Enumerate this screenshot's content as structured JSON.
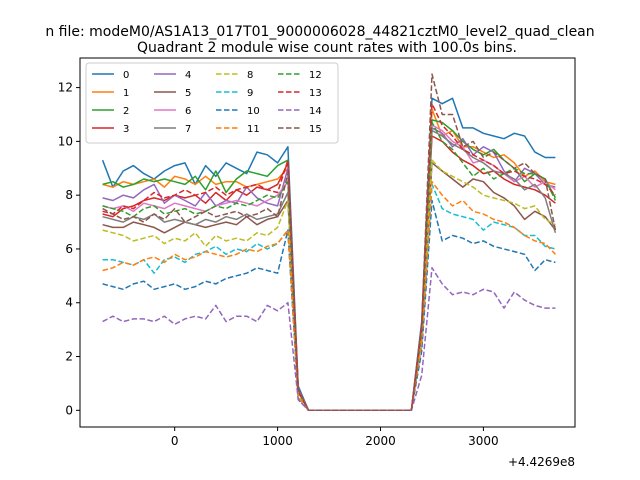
{
  "chart_data": {
    "type": "line",
    "suptitle": "n file: modeM0/AS1A13_017T01_9000006028_44821cztM0_level2_quad_clean",
    "title": "Quadrant 2 module wise count rates with 100.0s bins.",
    "xlabel": "",
    "ylabel": "",
    "x_offset_label": "+4.4269e8",
    "xlim": [
      -920,
      3890
    ],
    "ylim": [
      -0.62,
      13.1
    ],
    "x_ticks": [
      0,
      1000,
      2000,
      3000
    ],
    "x_tick_labels": [
      "0",
      "1000",
      "2000",
      "3000"
    ],
    "y_ticks": [
      0,
      2,
      4,
      6,
      8,
      10,
      12
    ],
    "y_tick_labels": [
      "0",
      "2",
      "4",
      "6",
      "8",
      "10",
      "12"
    ],
    "grid": false,
    "legend_placement": "top-left",
    "x": [
      -700,
      -600,
      -500,
      -400,
      -300,
      -200,
      -100,
      0,
      100,
      200,
      300,
      400,
      500,
      600,
      700,
      800,
      900,
      1000,
      1100,
      1200,
      1300,
      1400,
      1500,
      1600,
      1700,
      1800,
      1900,
      2000,
      2100,
      2200,
      2300,
      2400,
      2500,
      2600,
      2700,
      2800,
      2900,
      3000,
      3100,
      3200,
      3300,
      3400,
      3500,
      3600,
      3700
    ],
    "series": [
      {
        "name": "0",
        "color": "#1f77b4",
        "dash": "solid",
        "values": [
          9.3,
          8.3,
          8.9,
          9.1,
          8.8,
          8.6,
          8.9,
          9.1,
          9.2,
          8.4,
          9.1,
          8.7,
          9.2,
          9.0,
          8.8,
          9.6,
          9.5,
          9.2,
          9.8,
          0.9,
          0.0,
          0.0,
          0.0,
          0.0,
          0.0,
          0.0,
          0.0,
          0.0,
          0.0,
          0.0,
          0.0,
          3.3,
          11.6,
          11.4,
          11.6,
          10.5,
          10.5,
          10.3,
          10.2,
          10.1,
          10.3,
          10.2,
          9.6,
          9.4,
          9.4
        ]
      },
      {
        "name": "1",
        "color": "#ff7f0e",
        "dash": "solid",
        "values": [
          8.4,
          8.3,
          8.5,
          8.4,
          8.5,
          8.6,
          8.3,
          8.7,
          8.6,
          8.4,
          8.7,
          8.4,
          8.5,
          8.5,
          8.3,
          8.4,
          8.5,
          8.6,
          9.0,
          0.8,
          0.0,
          0.0,
          0.0,
          0.0,
          0.0,
          0.0,
          0.0,
          0.0,
          0.0,
          0.0,
          0.0,
          3.0,
          11.2,
          10.2,
          10.4,
          9.8,
          9.8,
          9.6,
          9.4,
          9.5,
          9.2,
          8.7,
          8.9,
          8.5,
          8.4
        ]
      },
      {
        "name": "2",
        "color": "#2ca02c",
        "dash": "solid",
        "values": [
          8.4,
          8.5,
          8.3,
          8.4,
          8.6,
          8.5,
          8.6,
          8.5,
          8.4,
          8.7,
          8.2,
          8.9,
          8.1,
          8.6,
          8.9,
          8.8,
          8.7,
          9.1,
          9.3,
          0.8,
          0.0,
          0.0,
          0.0,
          0.0,
          0.0,
          0.0,
          0.0,
          0.0,
          0.0,
          0.0,
          0.0,
          3.1,
          10.8,
          10.7,
          10.4,
          10.0,
          9.7,
          9.5,
          9.7,
          9.3,
          9.0,
          8.5,
          8.8,
          8.6,
          7.9
        ]
      },
      {
        "name": "3",
        "color": "#d62728",
        "dash": "solid",
        "values": [
          7.3,
          7.2,
          7.5,
          7.6,
          7.8,
          7.9,
          7.8,
          8.0,
          7.9,
          8.0,
          7.7,
          8.1,
          7.8,
          8.2,
          8.0,
          8.3,
          8.2,
          8.4,
          9.2,
          0.8,
          0.0,
          0.0,
          0.0,
          0.0,
          0.0,
          0.0,
          0.0,
          0.0,
          0.0,
          0.0,
          0.0,
          2.9,
          10.2,
          10.0,
          9.6,
          9.3,
          9.1,
          8.8,
          8.9,
          8.6,
          8.4,
          8.3,
          8.2,
          8.0,
          7.7
        ]
      },
      {
        "name": "4",
        "color": "#9467bd",
        "dash": "solid",
        "values": [
          7.9,
          7.8,
          8.0,
          7.9,
          8.2,
          8.4,
          7.7,
          8.0,
          7.8,
          7.6,
          8.1,
          7.6,
          7.8,
          7.7,
          8.3,
          7.9,
          7.7,
          7.6,
          9.0,
          0.8,
          0.0,
          0.0,
          0.0,
          0.0,
          0.0,
          0.0,
          0.0,
          0.0,
          0.0,
          0.0,
          0.0,
          3.2,
          10.5,
          10.3,
          9.8,
          10.1,
          9.5,
          9.8,
          9.6,
          8.9,
          8.5,
          9.0,
          8.8,
          8.4,
          8.3
        ]
      },
      {
        "name": "5",
        "color": "#8c564b",
        "dash": "solid",
        "values": [
          6.9,
          6.8,
          6.8,
          7.0,
          6.9,
          6.8,
          6.6,
          6.8,
          7.0,
          6.9,
          6.8,
          6.9,
          7.0,
          6.9,
          7.2,
          6.9,
          7.1,
          7.2,
          7.8,
          0.7,
          0.0,
          0.0,
          0.0,
          0.0,
          0.0,
          0.0,
          0.0,
          0.0,
          0.0,
          0.0,
          0.0,
          2.8,
          9.2,
          8.9,
          8.6,
          8.3,
          8.6,
          8.5,
          8.1,
          7.9,
          7.6,
          7.1,
          7.4,
          7.2,
          6.7
        ]
      },
      {
        "name": "6",
        "color": "#e377c2",
        "dash": "solid",
        "values": [
          7.6,
          7.5,
          7.6,
          7.4,
          7.7,
          7.6,
          7.5,
          7.7,
          7.6,
          7.5,
          7.4,
          7.6,
          7.7,
          7.8,
          7.7,
          7.6,
          7.8,
          8.0,
          8.5,
          0.7,
          0.0,
          0.0,
          0.0,
          0.0,
          0.0,
          0.0,
          0.0,
          0.0,
          0.0,
          0.0,
          0.0,
          3.0,
          10.6,
          10.4,
          10.0,
          9.8,
          9.2,
          9.3,
          9.1,
          8.8,
          8.5,
          8.7,
          8.3,
          8.5,
          8.2
        ]
      },
      {
        "name": "7",
        "color": "#7f7f7f",
        "dash": "solid",
        "values": [
          7.2,
          7.1,
          7.0,
          7.2,
          7.1,
          7.3,
          7.0,
          7.1,
          7.0,
          6.9,
          7.1,
          7.0,
          7.2,
          7.1,
          7.3,
          7.1,
          7.2,
          7.3,
          8.1,
          0.7,
          0.0,
          0.0,
          0.0,
          0.0,
          0.0,
          0.0,
          0.0,
          0.0,
          0.0,
          0.0,
          0.0,
          2.9,
          10.4,
          10.2,
          9.9,
          9.7,
          9.4,
          9.2,
          8.9,
          8.8,
          8.6,
          8.2,
          8.4,
          7.9,
          6.6
        ]
      },
      {
        "name": "8",
        "color": "#bcbd22",
        "dash": "dashed",
        "values": [
          6.7,
          6.6,
          6.5,
          6.3,
          6.4,
          6.5,
          6.2,
          6.4,
          6.3,
          6.6,
          6.1,
          6.5,
          6.3,
          6.4,
          6.3,
          6.6,
          6.5,
          6.8,
          7.8,
          0.6,
          0.0,
          0.0,
          0.0,
          0.0,
          0.0,
          0.0,
          0.0,
          0.0,
          0.0,
          0.0,
          0.0,
          2.8,
          9.3,
          8.9,
          8.7,
          8.5,
          8.3,
          8.0,
          7.9,
          7.8,
          7.7,
          7.5,
          7.6,
          7.1,
          6.9
        ]
      },
      {
        "name": "9",
        "color": "#17becf",
        "dash": "dashed",
        "values": [
          5.6,
          5.6,
          5.5,
          5.4,
          5.6,
          5.1,
          5.6,
          5.7,
          5.5,
          5.8,
          5.9,
          6.1,
          5.8,
          6.0,
          5.9,
          6.2,
          6.0,
          6.2,
          6.7,
          0.5,
          0.0,
          0.0,
          0.0,
          0.0,
          0.0,
          0.0,
          0.0,
          0.0,
          0.0,
          0.0,
          0.0,
          2.4,
          8.4,
          7.5,
          7.3,
          7.2,
          7.1,
          6.7,
          7.0,
          6.9,
          6.8,
          6.5,
          6.5,
          6.1,
          6.0
        ]
      },
      {
        "name": "10",
        "color": "#1f77b4",
        "dash": "dashed",
        "values": [
          4.7,
          4.6,
          4.5,
          4.7,
          4.8,
          4.5,
          4.6,
          4.7,
          4.5,
          4.6,
          4.8,
          4.7,
          4.9,
          5.0,
          5.1,
          5.3,
          5.2,
          5.1,
          6.7,
          0.4,
          0.0,
          0.0,
          0.0,
          0.0,
          0.0,
          0.0,
          0.0,
          0.0,
          0.0,
          0.0,
          0.0,
          2.2,
          7.8,
          6.3,
          6.5,
          6.4,
          6.2,
          6.3,
          6.1,
          6.0,
          5.9,
          5.8,
          5.2,
          5.6,
          5.5
        ]
      },
      {
        "name": "11",
        "color": "#ff7f0e",
        "dash": "dashed",
        "values": [
          5.2,
          5.3,
          5.5,
          5.4,
          5.6,
          5.7,
          5.5,
          5.8,
          5.6,
          5.7,
          5.9,
          5.8,
          5.7,
          5.8,
          6.0,
          5.9,
          6.1,
          6.2,
          6.7,
          0.5,
          0.0,
          0.0,
          0.0,
          0.0,
          0.0,
          0.0,
          0.0,
          0.0,
          0.0,
          0.0,
          0.0,
          2.5,
          8.5,
          8.0,
          7.6,
          7.8,
          7.4,
          7.3,
          7.1,
          7.0,
          6.8,
          6.5,
          6.3,
          6.2,
          5.8
        ]
      },
      {
        "name": "12",
        "color": "#2ca02c",
        "dash": "dashed",
        "values": [
          7.6,
          7.5,
          7.4,
          7.2,
          7.5,
          7.6,
          7.3,
          7.4,
          7.5,
          7.3,
          7.4,
          7.6,
          7.5,
          7.7,
          7.6,
          7.8,
          8.0,
          7.9,
          8.5,
          0.7,
          0.0,
          0.0,
          0.0,
          0.0,
          0.0,
          0.0,
          0.0,
          0.0,
          0.0,
          0.0,
          0.0,
          3.0,
          10.7,
          10.0,
          9.7,
          9.2,
          8.7,
          9.0,
          8.6,
          8.8,
          9.0,
          8.8,
          8.8,
          8.6,
          7.8
        ]
      },
      {
        "name": "13",
        "color": "#d62728",
        "dash": "dashed",
        "values": [
          7.4,
          7.3,
          7.6,
          7.5,
          7.8,
          8.1,
          7.9,
          8.0,
          8.2,
          8.0,
          8.1,
          8.3,
          8.0,
          8.2,
          8.3,
          8.4,
          8.2,
          8.1,
          9.3,
          0.7,
          0.0,
          0.0,
          0.0,
          0.0,
          0.0,
          0.0,
          0.0,
          0.0,
          0.0,
          0.0,
          0.0,
          3.1,
          11.4,
          10.6,
          10.2,
          9.7,
          9.5,
          9.3,
          9.1,
          8.8,
          8.9,
          8.7,
          8.6,
          8.4,
          8.0
        ]
      },
      {
        "name": "14",
        "color": "#9467bd",
        "dash": "dashed",
        "values": [
          3.3,
          3.5,
          3.3,
          3.4,
          3.4,
          3.3,
          3.5,
          3.2,
          3.4,
          3.5,
          3.4,
          3.9,
          3.3,
          3.5,
          3.5,
          3.3,
          3.9,
          3.7,
          4.0,
          0.4,
          0.0,
          0.0,
          0.0,
          0.0,
          0.0,
          0.0,
          0.0,
          0.0,
          0.0,
          0.0,
          0.0,
          1.3,
          5.3,
          4.7,
          4.3,
          4.4,
          4.3,
          4.5,
          4.4,
          3.8,
          4.4,
          4.1,
          3.9,
          3.8,
          3.8
        ]
      },
      {
        "name": "15",
        "color": "#8c564b",
        "dash": "dashed",
        "values": [
          7.5,
          7.3,
          7.1,
          7.2,
          7.0,
          7.3,
          7.1,
          7.5,
          7.0,
          7.2,
          7.4,
          7.2,
          7.3,
          7.4,
          7.2,
          7.3,
          7.5,
          7.2,
          8.8,
          0.8,
          0.0,
          0.0,
          0.0,
          0.0,
          0.0,
          0.0,
          0.0,
          0.0,
          0.0,
          0.0,
          0.0,
          3.2,
          12.5,
          11.0,
          11.0,
          9.8,
          10.0,
          9.4,
          9.6,
          9.3,
          9.0,
          9.2,
          8.8,
          8.6,
          6.7
        ]
      }
    ]
  }
}
